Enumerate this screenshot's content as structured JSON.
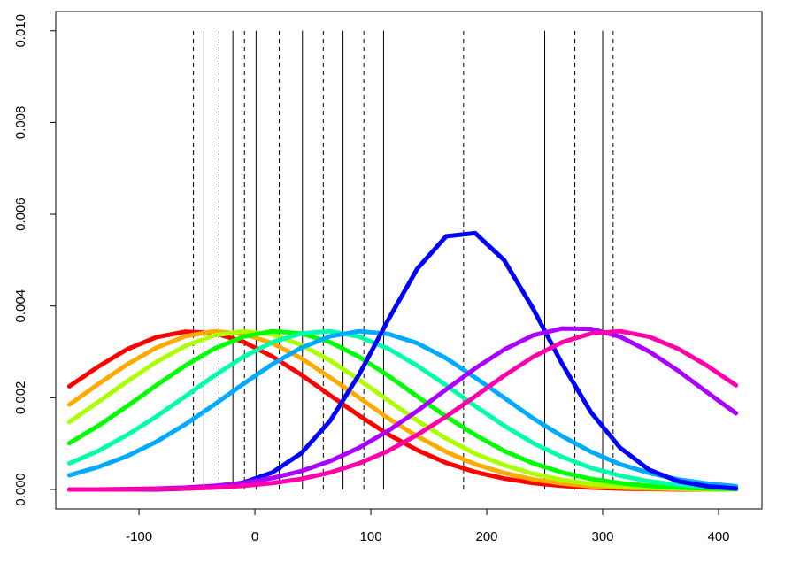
{
  "chart_data": {
    "type": "line",
    "x": [
      -160,
      -135,
      -110,
      -85,
      -60,
      -35,
      -10,
      15,
      40,
      65,
      90,
      115,
      140,
      165,
      190,
      215,
      240,
      265,
      290,
      315,
      340,
      365,
      390,
      415
    ],
    "series": [
      {
        "color": "#ff0000",
        "values": [
          0.00225,
          0.00268,
          0.00306,
          0.00332,
          0.00344,
          0.00341,
          0.00322,
          0.0029,
          0.0025,
          0.00205,
          0.00161,
          0.0012,
          0.00086,
          0.00058,
          0.00038,
          0.00024,
          0.00014,
          8e-05,
          4e-05,
          2e-05,
          1e-05,
          0,
          0,
          0
        ]
      },
      {
        "color": "#ffaa00",
        "values": [
          0.00185,
          0.0023,
          0.00273,
          0.00309,
          0.00334,
          0.00345,
          0.00339,
          0.00319,
          0.00286,
          0.00244,
          0.002,
          0.00155,
          0.00116,
          0.00082,
          0.00055,
          0.00036,
          0.00022,
          0.00013,
          7e-05,
          4e-05,
          2e-05,
          1e-05,
          0,
          0
        ]
      },
      {
        "color": "#aaff00",
        "values": [
          0.00147,
          0.00191,
          0.00236,
          0.00278,
          0.00313,
          0.00336,
          0.00345,
          0.00338,
          0.00315,
          0.00281,
          0.00239,
          0.00194,
          0.0015,
          0.00111,
          0.00078,
          0.00053,
          0.00034,
          0.00021,
          0.00012,
          7e-05,
          4e-05,
          2e-05,
          1e-05,
          0
        ]
      },
      {
        "color": "#00ff00",
        "values": [
          0.00101,
          0.00139,
          0.00182,
          0.00227,
          0.0027,
          0.00307,
          0.00333,
          0.00345,
          0.0034,
          0.00321,
          0.00289,
          0.00248,
          0.00203,
          0.00159,
          0.00119,
          0.00084,
          0.00057,
          0.00037,
          0.00023,
          0.00014,
          8e-05,
          4e-05,
          2e-05,
          1e-05
        ]
      },
      {
        "color": "#00ffaa",
        "values": [
          0.00057,
          0.00084,
          0.00119,
          0.00159,
          0.00203,
          0.00248,
          0.00289,
          0.00321,
          0.0034,
          0.00345,
          0.00333,
          0.00307,
          0.0027,
          0.00227,
          0.00182,
          0.00139,
          0.00101,
          0.00071,
          0.00047,
          0.0003,
          0.00018,
          0.0001,
          6e-05,
          3e-05
        ]
      },
      {
        "color": "#00aaff",
        "values": [
          0.00031,
          0.00049,
          0.00073,
          0.00104,
          0.00142,
          0.00185,
          0.0023,
          0.00273,
          0.00309,
          0.00334,
          0.00345,
          0.00339,
          0.00319,
          0.00286,
          0.00244,
          0.002,
          0.00155,
          0.00116,
          0.00082,
          0.00055,
          0.00036,
          0.00022,
          0.00013,
          7e-05
        ]
      },
      {
        "color": "#0000ff",
        "values": [
          0,
          0,
          0,
          0,
          2e-05,
          5e-05,
          0.00015,
          0.00037,
          0.00079,
          0.0015,
          0.00251,
          0.0037,
          0.00481,
          0.00552,
          0.00559,
          0.005,
          0.00394,
          0.00274,
          0.00168,
          0.00091,
          0.00043,
          0.00018,
          7e-05,
          2e-05
        ]
      },
      {
        "color": "#aa00ff",
        "values": [
          0,
          0,
          1e-05,
          2e-05,
          4e-05,
          8e-05,
          0.00014,
          0.00025,
          0.0004,
          0.00062,
          0.00091,
          0.00128,
          0.00171,
          0.00218,
          0.00264,
          0.00305,
          0.00336,
          0.00351,
          0.0035,
          0.00333,
          0.00301,
          0.00259,
          0.00212,
          0.00166
        ]
      },
      {
        "color": "#ff00aa",
        "values": [
          0,
          0,
          0,
          1e-05,
          2e-05,
          4e-05,
          8e-05,
          0.00014,
          0.00023,
          0.00037,
          0.00057,
          0.00084,
          0.00119,
          0.00159,
          0.00203,
          0.00248,
          0.00289,
          0.00321,
          0.0034,
          0.00345,
          0.00333,
          0.00307,
          0.0027,
          0.00227
        ]
      }
    ],
    "vlines": {
      "dashed": [
        -53,
        -31,
        -9,
        21,
        59,
        94,
        180,
        276,
        309
      ],
      "solid": [
        -44,
        -19,
        1,
        41,
        76,
        111,
        250,
        300
      ]
    },
    "vline_span": [
      0,
      0.01
    ],
    "xlim": [
      -171.8,
      437.4
    ],
    "ylim": [
      -0.000425,
      0.01042
    ],
    "xticks": [
      -100,
      0,
      100,
      200,
      300,
      400
    ],
    "yticks": [
      {
        "value": 0,
        "label": "0.000"
      },
      {
        "value": 0.002,
        "label": "0.002"
      },
      {
        "value": 0.004,
        "label": "0.004"
      },
      {
        "value": 0.006,
        "label": "0.006"
      },
      {
        "value": 0.008,
        "label": "0.008"
      },
      {
        "value": 0.01,
        "label": "0.010"
      }
    ]
  }
}
